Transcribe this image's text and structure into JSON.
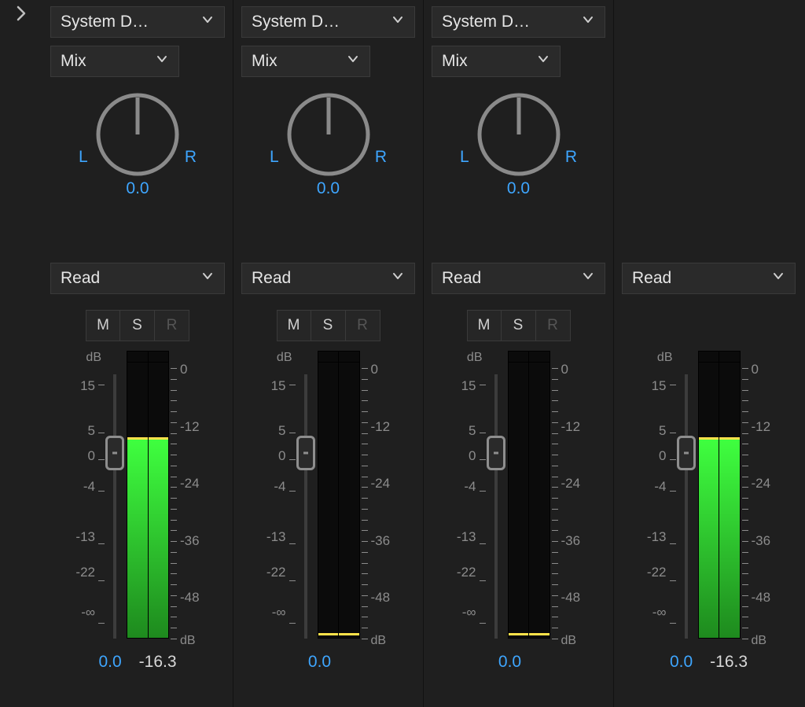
{
  "colors": {
    "bg": "#1f1f1f",
    "panel": "#2a2a2a",
    "border": "#3a3a3a",
    "text": "#e8e8e8",
    "muted": "#8c8c8c",
    "accent_blue": "#3ea6ff",
    "meter_gradient_top": "#3fff3f",
    "meter_gradient_bottom": "#1e8a1e",
    "peak_yellow": "#ffe24a"
  },
  "fader_scale": {
    "unit_label": "dB",
    "labels": [
      "15",
      "5",
      "0",
      "-4",
      "-13",
      "-22",
      "-∞"
    ],
    "label_percents": [
      4,
      22,
      32,
      44,
      64,
      78,
      94
    ],
    "thumb_percent": 27
  },
  "meter_scale": {
    "unit_top": "dB",
    "unit_bottom": "dB",
    "labels": [
      "0",
      "-12",
      "-24",
      "-36",
      "-48"
    ],
    "label_percents": [
      0,
      22,
      44,
      66,
      88
    ],
    "minor_tick_count": 26
  },
  "channels": [
    {
      "has_top_section": true,
      "output_label": "System D…",
      "send_label": "Mix",
      "pan": {
        "L": "L",
        "R": "R",
        "value": "0.0",
        "angle_deg": 0
      },
      "automation_label": "Read",
      "msr": {
        "m": "M",
        "s": "S",
        "r": "R",
        "r_disabled": true
      },
      "meter": {
        "fill_percent": 72,
        "peak_percent": 72
      },
      "readout": {
        "fader": "0.0",
        "level": "-16.3"
      }
    },
    {
      "has_top_section": true,
      "output_label": "System D…",
      "send_label": "Mix",
      "pan": {
        "L": "L",
        "R": "R",
        "value": "0.0",
        "angle_deg": 0
      },
      "automation_label": "Read",
      "msr": {
        "m": "M",
        "s": "S",
        "r": "R",
        "r_disabled": true
      },
      "meter": {
        "fill_percent": 0,
        "peak_percent": 1
      },
      "readout": {
        "fader": "0.0",
        "level": ""
      }
    },
    {
      "has_top_section": true,
      "output_label": "System D…",
      "send_label": "Mix",
      "pan": {
        "L": "L",
        "R": "R",
        "value": "0.0",
        "angle_deg": 0
      },
      "automation_label": "Read",
      "msr": {
        "m": "M",
        "s": "S",
        "r": "R",
        "r_disabled": true
      },
      "meter": {
        "fill_percent": 0,
        "peak_percent": 1
      },
      "readout": {
        "fader": "0.0",
        "level": ""
      }
    },
    {
      "has_top_section": false,
      "automation_label": "Read",
      "msr": null,
      "meter": {
        "fill_percent": 72,
        "peak_percent": 72
      },
      "readout": {
        "fader": "0.0",
        "level": "-16.3"
      }
    }
  ]
}
